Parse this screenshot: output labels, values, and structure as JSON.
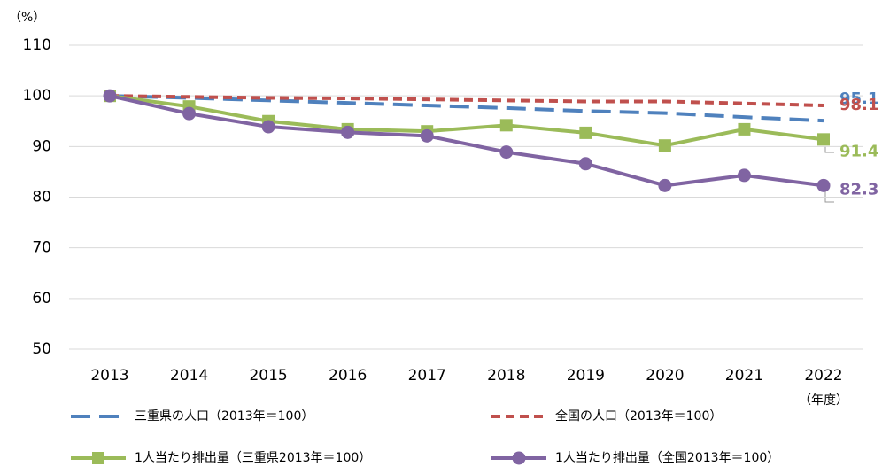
{
  "chart_data": {
    "type": "line",
    "y_unit_label": "（%）",
    "x_axis_label": "（年度）",
    "categories": [
      "2013",
      "2014",
      "2015",
      "2016",
      "2017",
      "2018",
      "2019",
      "2020",
      "2021",
      "2022"
    ],
    "ylim": [
      50,
      110
    ],
    "yticks": [
      50,
      60,
      70,
      80,
      90,
      100,
      110
    ],
    "grid": true,
    "series": [
      {
        "name": "三重県の人口（2013年＝100）",
        "color": "#4f81bd",
        "style": "dashed",
        "marker": "none",
        "values": [
          100,
          99.6,
          99.1,
          98.6,
          98.1,
          97.6,
          97.0,
          96.6,
          95.8,
          95.1
        ]
      },
      {
        "name": "全国の人口（2013年＝100）",
        "color": "#c0504d",
        "style": "dashed",
        "marker": "none",
        "values": [
          100,
          99.8,
          99.6,
          99.5,
          99.3,
          99.1,
          98.9,
          98.9,
          98.5,
          98.1
        ]
      },
      {
        "name": "1人当たり排出量（三重県2013年＝100）",
        "color": "#9bbb59",
        "style": "solid",
        "marker": "square",
        "values": [
          100,
          97.9,
          95.0,
          93.4,
          93.0,
          94.2,
          92.7,
          90.2,
          93.4,
          91.4
        ]
      },
      {
        "name": "1人当たり排出量（全国2013年＝100）",
        "color": "#8064a2",
        "style": "solid",
        "marker": "circle",
        "values": [
          100,
          96.5,
          93.9,
          92.8,
          92.1,
          88.9,
          86.6,
          82.3,
          84.3,
          82.3
        ]
      }
    ]
  }
}
